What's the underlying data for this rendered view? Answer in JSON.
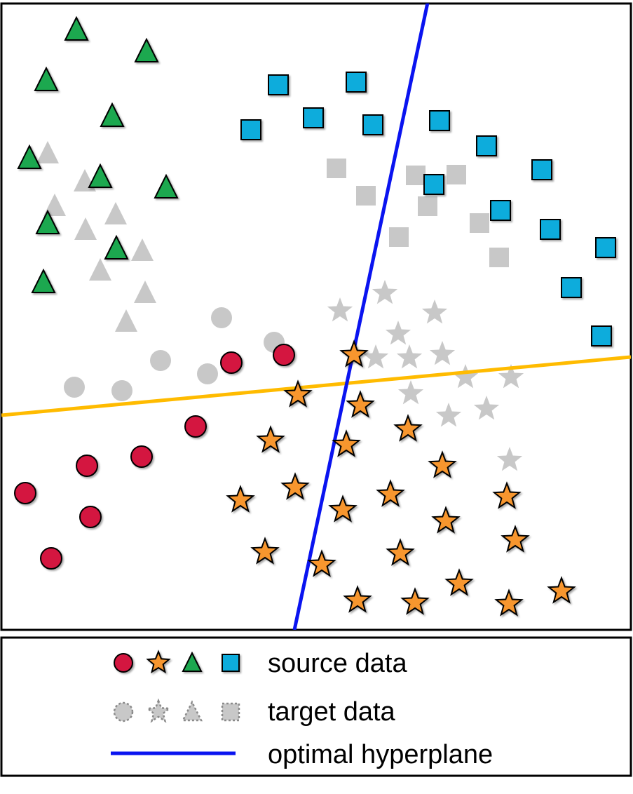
{
  "colors": {
    "circle": "#d4123f",
    "star": "#f7962e",
    "triangle": "#1ba84f",
    "square": "#10acdc",
    "target": "#c8c8c8",
    "optimal_hyperplane": "#0a14f0",
    "source_boundary": "#ffbb00"
  },
  "legend": {
    "source": "source data",
    "target": "target data",
    "hyperplane": "optimal hyperplane"
  },
  "source": {
    "triangle": [
      [
        109,
        42
      ],
      [
        209,
        73
      ],
      [
        66,
        114
      ],
      [
        160,
        165
      ],
      [
        42,
        225
      ],
      [
        143,
        252
      ],
      [
        237,
        267
      ],
      [
        68,
        318
      ],
      [
        166,
        354
      ],
      [
        62,
        402
      ]
    ],
    "square": [
      [
        397,
        121
      ],
      [
        508,
        117
      ],
      [
        447,
        168
      ],
      [
        532,
        178
      ],
      [
        358,
        185
      ],
      [
        627,
        172
      ],
      [
        694,
        208
      ],
      [
        773,
        242
      ],
      [
        619,
        263
      ],
      [
        714,
        300
      ],
      [
        785,
        327
      ],
      [
        864,
        353
      ],
      [
        815,
        410
      ],
      [
        858,
        479
      ]
    ],
    "circle": [
      [
        405,
        506
      ],
      [
        330,
        517
      ],
      [
        279,
        608
      ],
      [
        124,
        664
      ],
      [
        202,
        651
      ],
      [
        36,
        703
      ],
      [
        129,
        737
      ],
      [
        73,
        796
      ]
    ],
    "star": [
      [
        505,
        506
      ],
      [
        425,
        563
      ],
      [
        514,
        578
      ],
      [
        582,
        612
      ],
      [
        386,
        628
      ],
      [
        494,
        634
      ],
      [
        631,
        664
      ],
      [
        421,
        695
      ],
      [
        343,
        713
      ],
      [
        557,
        705
      ],
      [
        489,
        727
      ],
      [
        723,
        708
      ],
      [
        636,
        743
      ],
      [
        735,
        770
      ],
      [
        378,
        787
      ],
      [
        571,
        789
      ],
      [
        459,
        805
      ],
      [
        655,
        832
      ],
      [
        801,
        843
      ],
      [
        510,
        856
      ],
      [
        592,
        859
      ],
      [
        726,
        861
      ]
    ]
  },
  "target": {
    "triangle": [
      [
        68,
        218
      ],
      [
        121,
        258
      ],
      [
        78,
        293
      ],
      [
        165,
        305
      ],
      [
        122,
        327
      ],
      [
        203,
        357
      ],
      [
        143,
        385
      ],
      [
        207,
        417
      ],
      [
        180,
        458
      ]
    ],
    "square": [
      [
        480,
        240
      ],
      [
        593,
        250
      ],
      [
        651,
        249
      ],
      [
        522,
        279
      ],
      [
        610,
        294
      ],
      [
        684,
        318
      ],
      [
        569,
        338
      ],
      [
        712,
        367
      ]
    ],
    "circle": [
      [
        316,
        453
      ],
      [
        391,
        488
      ],
      [
        229,
        514
      ],
      [
        296,
        533
      ],
      [
        106,
        552
      ],
      [
        174,
        557
      ]
    ],
    "star": [
      [
        549,
        418
      ],
      [
        485,
        443
      ],
      [
        620,
        446
      ],
      [
        568,
        476
      ],
      [
        536,
        510
      ],
      [
        584,
        510
      ],
      [
        631,
        505
      ],
      [
        664,
        538
      ],
      [
        729,
        538
      ],
      [
        586,
        561
      ],
      [
        640,
        593
      ],
      [
        694,
        583
      ],
      [
        727,
        656
      ]
    ]
  },
  "lines": {
    "optimal_hyperplane": [
      [
        610,
        4
      ],
      [
        420,
        898
      ]
    ],
    "source_boundary": [
      [
        2,
        592
      ],
      [
        900,
        509
      ]
    ]
  }
}
